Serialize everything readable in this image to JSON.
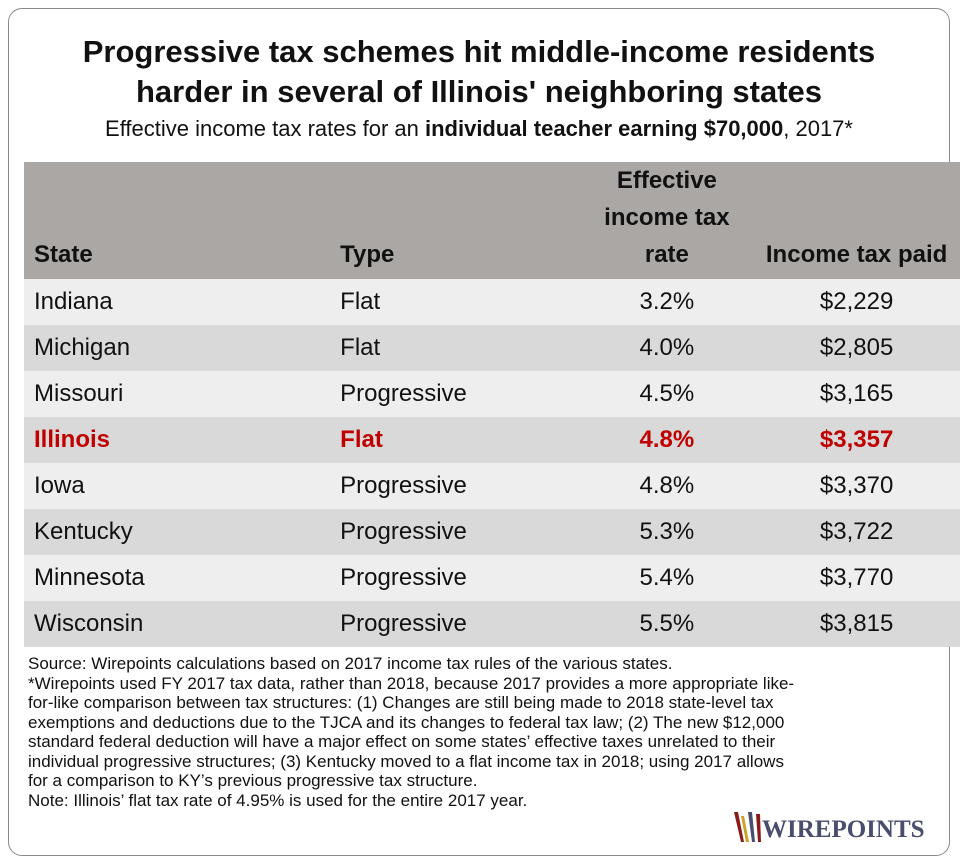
{
  "title_line1": "Progressive tax schemes hit middle-income residents",
  "title_line2": "harder in several of Illinois' neighboring states",
  "subtitle": {
    "prefix": "Effective income tax rates for an ",
    "bold": "individual teacher earning $70,000",
    "suffix": ", 2017*"
  },
  "chart_data": {
    "type": "table",
    "columns": [
      "State",
      "Type",
      "Effective income tax rate",
      "Income tax paid"
    ],
    "rows": [
      {
        "state": "Indiana",
        "type": "Flat",
        "rate": "3.2%",
        "paid": "$2,229"
      },
      {
        "state": "Michigan",
        "type": "Flat",
        "rate": "4.0%",
        "paid": "$2,805"
      },
      {
        "state": "Missouri",
        "type": "Progressive",
        "rate": "4.5%",
        "paid": "$3,165"
      },
      {
        "state": "Illinois",
        "type": "Flat",
        "rate": "4.8%",
        "paid": "$3,357"
      },
      {
        "state": "Iowa",
        "type": "Progressive",
        "rate": "4.8%",
        "paid": "$3,370"
      },
      {
        "state": "Kentucky",
        "type": "Progressive",
        "rate": "5.3%",
        "paid": "$3,722"
      },
      {
        "state": "Minnesota",
        "type": "Progressive",
        "rate": "5.4%",
        "paid": "$3,770"
      },
      {
        "state": "Wisconsin",
        "type": "Progressive",
        "rate": "5.5%",
        "paid": "$3,815"
      }
    ],
    "highlight_state": "Illinois",
    "highlight_color": "#c00000",
    "header_color": "#aaa7a4"
  },
  "notes": {
    "source": "Source: Wirepoints calculations based on 2017 income tax rules of the various states.",
    "footnote": "*Wirepoints used FY 2017 tax data, rather than 2018, because 2017 provides a more appropriate like-for-like comparison between tax structures: (1) Changes are still being made to 2018 state-level tax exemptions and deductions due to the TJCA and its changes to federal tax law; (2) The new $12,000 standard federal deduction will have a major effect on some states’ effective taxes unrelated to their individual progressive structures; (3) Kentucky moved to a flat income tax in 2018; using 2017 allows for a comparison to KY’s previous progressive tax structure.",
    "note": "Note: Illinois’ flat tax rate of 4.95% is used for the entire 2017 year."
  },
  "logo": {
    "text": "WIREPOINTS",
    "color": "#4a4e6e",
    "accent": "#8b1a1a"
  }
}
